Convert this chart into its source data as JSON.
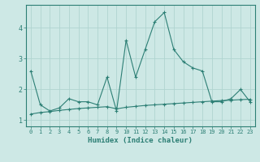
{
  "xlabel": "Humidex (Indice chaleur)",
  "x": [
    0,
    1,
    2,
    3,
    4,
    5,
    6,
    7,
    8,
    9,
    10,
    11,
    12,
    13,
    14,
    15,
    16,
    17,
    18,
    19,
    20,
    21,
    22,
    23
  ],
  "line1_y": [
    2.6,
    1.5,
    1.3,
    1.4,
    1.7,
    1.6,
    1.6,
    1.5,
    2.4,
    1.3,
    3.6,
    2.4,
    3.3,
    4.2,
    4.5,
    3.3,
    2.9,
    2.7,
    2.6,
    1.6,
    1.6,
    1.7,
    2.0,
    1.6
  ],
  "line2_y": [
    1.2,
    1.25,
    1.28,
    1.32,
    1.35,
    1.38,
    1.4,
    1.42,
    1.44,
    1.37,
    1.42,
    1.45,
    1.48,
    1.5,
    1.52,
    1.54,
    1.56,
    1.58,
    1.6,
    1.62,
    1.64,
    1.65,
    1.67,
    1.68
  ],
  "line_color": "#2d7f75",
  "bg_color": "#cde8e5",
  "grid_color": "#b0d4d0",
  "ylim": [
    0.8,
    4.75
  ],
  "yticks": [
    1,
    2,
    3,
    4
  ],
  "xlim": [
    -0.5,
    23.5
  ]
}
